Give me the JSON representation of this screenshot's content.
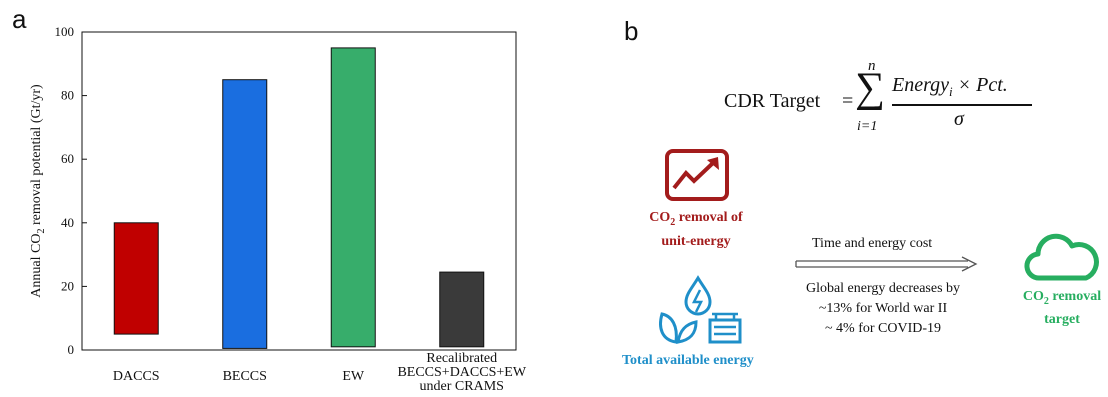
{
  "panel_a": {
    "letter": "a"
  },
  "panel_b": {
    "letter": "b",
    "formula": {
      "lhs": "CDR  Target",
      "equals": "=",
      "sum_top": "n",
      "sum_symbol": "∑",
      "sum_bottom": "i=1",
      "numerator": "Energy",
      "numerator_sub": "i",
      "numerator_rest": " × Pct.",
      "denominator": "σ"
    },
    "co2_removal_label_line1_prefix": "CO",
    "co2_removal_label_line1_sub": "2",
    "co2_removal_label_line1_suffix": " removal of",
    "co2_removal_label_line2": "unit-energy",
    "total_energy_label": "Total available energy",
    "arrow_label": "Time and energy cost",
    "note_line1": "Global energy decreases by",
    "note_line2": "~13% for World war II",
    "note_line3": "~ 4%  for COVID-19",
    "target_label_line1_prefix": "CO",
    "target_label_line1_sub": "2",
    "target_label_line1_suffix": " removal",
    "target_label_line2": "target",
    "colors": {
      "red": "#a31c1c",
      "blue": "#1f8fc9",
      "green": "#27ae60"
    },
    "icons": [
      "trend-chart-icon",
      "energy-icon",
      "cloud-icon"
    ]
  },
  "chart_data": {
    "type": "bar",
    "ylabel": "Annual CO2 removal potential (Gt/yr)",
    "ylim": [
      0,
      100
    ],
    "yticks": [
      0,
      20,
      40,
      60,
      80,
      100
    ],
    "categories": [
      [
        "DACCS"
      ],
      [
        "BECCS"
      ],
      [
        "EW"
      ],
      [
        "Recalibrated",
        "BECCS+DACCS+EW",
        "under CRAMS"
      ]
    ],
    "bars": [
      {
        "bottom": 5,
        "top": 40,
        "color": "#c00000"
      },
      {
        "bottom": 0.5,
        "top": 85,
        "color": "#1a6ee0"
      },
      {
        "bottom": 1,
        "top": 95,
        "color": "#37ad6b"
      },
      {
        "bottom": 1,
        "top": 24.5,
        "color": "#3a3a3a"
      }
    ]
  }
}
